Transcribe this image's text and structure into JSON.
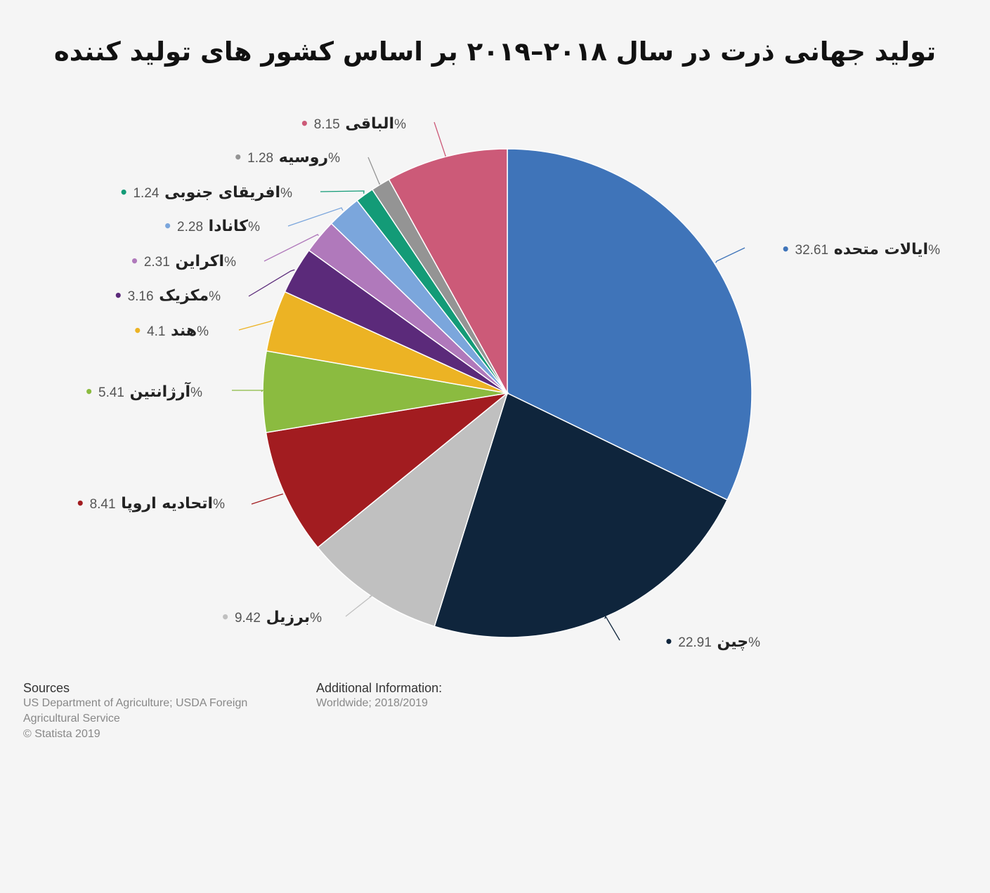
{
  "title": "تولید جهانی ذرت در سال ۲۰۱۸–۲۰۱۹ بر اساس کشور های تولید کننده",
  "chart_data": {
    "type": "pie",
    "title": "تولید جهانی ذرت در سال ۲۰۱۸–۲۰۱۹ بر اساس کشور های تولید کننده",
    "slices": [
      {
        "label": "ایالات متحده",
        "value": 32.61,
        "value_label": "32.61%",
        "color": "#3f74b9"
      },
      {
        "label": "چین",
        "value": 22.91,
        "value_label": "22.91%",
        "color": "#0f253c"
      },
      {
        "label": "برزیل",
        "value": 9.42,
        "value_label": "9.42%",
        "color": "#c0c0c0"
      },
      {
        "label": "اتحادیه اروپا",
        "value": 8.41,
        "value_label": "8.41%",
        "color": "#a21c20"
      },
      {
        "label": "آرژانتین",
        "value": 5.41,
        "value_label": "5.41%",
        "color": "#8bbb40"
      },
      {
        "label": "هند",
        "value": 4.1,
        "value_label": "4.1%",
        "color": "#ecb324"
      },
      {
        "label": "مکزیک",
        "value": 3.16,
        "value_label": "3.16%",
        "color": "#5b2a7a"
      },
      {
        "label": "اکراین",
        "value": 2.31,
        "value_label": "2.31%",
        "color": "#b079bb"
      },
      {
        "label": "کانادا",
        "value": 2.28,
        "value_label": "2.28%",
        "color": "#7ba6dc"
      },
      {
        "label": "افریقای جنوبی",
        "value": 1.24,
        "value_label": "1.24%",
        "color": "#139b77"
      },
      {
        "label": "روسیه",
        "value": 1.28,
        "value_label": "1.28%",
        "color": "#949494"
      },
      {
        "label": "الباقی",
        "value": 8.15,
        "value_label": "8.15%",
        "color": "#cc5a78"
      }
    ]
  },
  "footer": {
    "sources_heading": "Sources",
    "sources_lines": [
      "US Department of Agriculture; USDA Foreign",
      "Agricultural Service",
      "© Statista 2019"
    ],
    "additional_heading": "Additional Information:",
    "additional_lines": [
      "Worldwide; 2018/2019"
    ]
  }
}
